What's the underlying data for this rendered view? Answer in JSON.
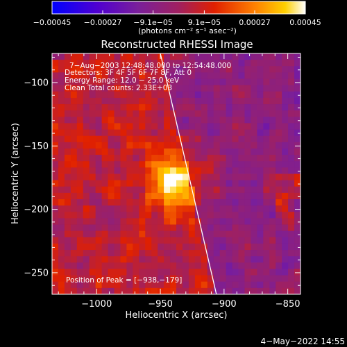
{
  "chart_data": {
    "type": "heatmap",
    "title": "Reconstructed RHESSI Image",
    "xlabel": "Heliocentric X (arcsec)",
    "ylabel": "Heliocentric Y (arcsec)",
    "xlim": [
      -1035,
      -840
    ],
    "ylim": [
      -267,
      -77
    ],
    "x_ticks": [
      {
        "value": -1000,
        "label": "−1000"
      },
      {
        "value": -950,
        "label": "−950"
      },
      {
        "value": -900,
        "label": "−900"
      },
      {
        "value": -850,
        "label": "−850"
      }
    ],
    "y_ticks": [
      {
        "value": -100,
        "label": "−100"
      },
      {
        "value": -150,
        "label": "−150"
      },
      {
        "value": -200,
        "label": "−200"
      },
      {
        "value": -250,
        "label": "−250"
      }
    ],
    "colorbar": {
      "range": [
        -0.00045,
        0.00045
      ],
      "ticks": [
        {
          "value": -0.00045,
          "label": "−0.00045"
        },
        {
          "value": -0.00027,
          "label": "−0.00027"
        },
        {
          "value": -9.1e-05,
          "label": "−9.1e−05"
        },
        {
          "value": 9.1e-05,
          "label": "9.1e−05"
        },
        {
          "value": 0.00027,
          "label": "0.00027"
        },
        {
          "value": 0.00045,
          "label": "0.00045"
        }
      ],
      "units_label": "(photons cm⁻² s⁻¹ asec⁻²)"
    },
    "annotations": [
      "7−Aug−2003 12:48:48.000 to 12:54:48.000",
      "Detectors: 3F 4F 5F 6F 7F 8F, Att 0",
      "Energy Range: 12.0 − 25.0 keV",
      "Clean    Total counts: 2.33E+03"
    ],
    "peak_label": "Position of Peak = [−938,−179]",
    "peak": {
      "x": -938,
      "y": -179
    },
    "limb_line": {
      "x1": -950,
      "y1": -77,
      "x2": -906,
      "y2": -267
    },
    "grid_cells": [
      40,
      38
    ],
    "colors": {
      "background": "#000000",
      "foreground": "#ffffff"
    }
  },
  "footer": {
    "date": "4−May−2022 14:55"
  }
}
